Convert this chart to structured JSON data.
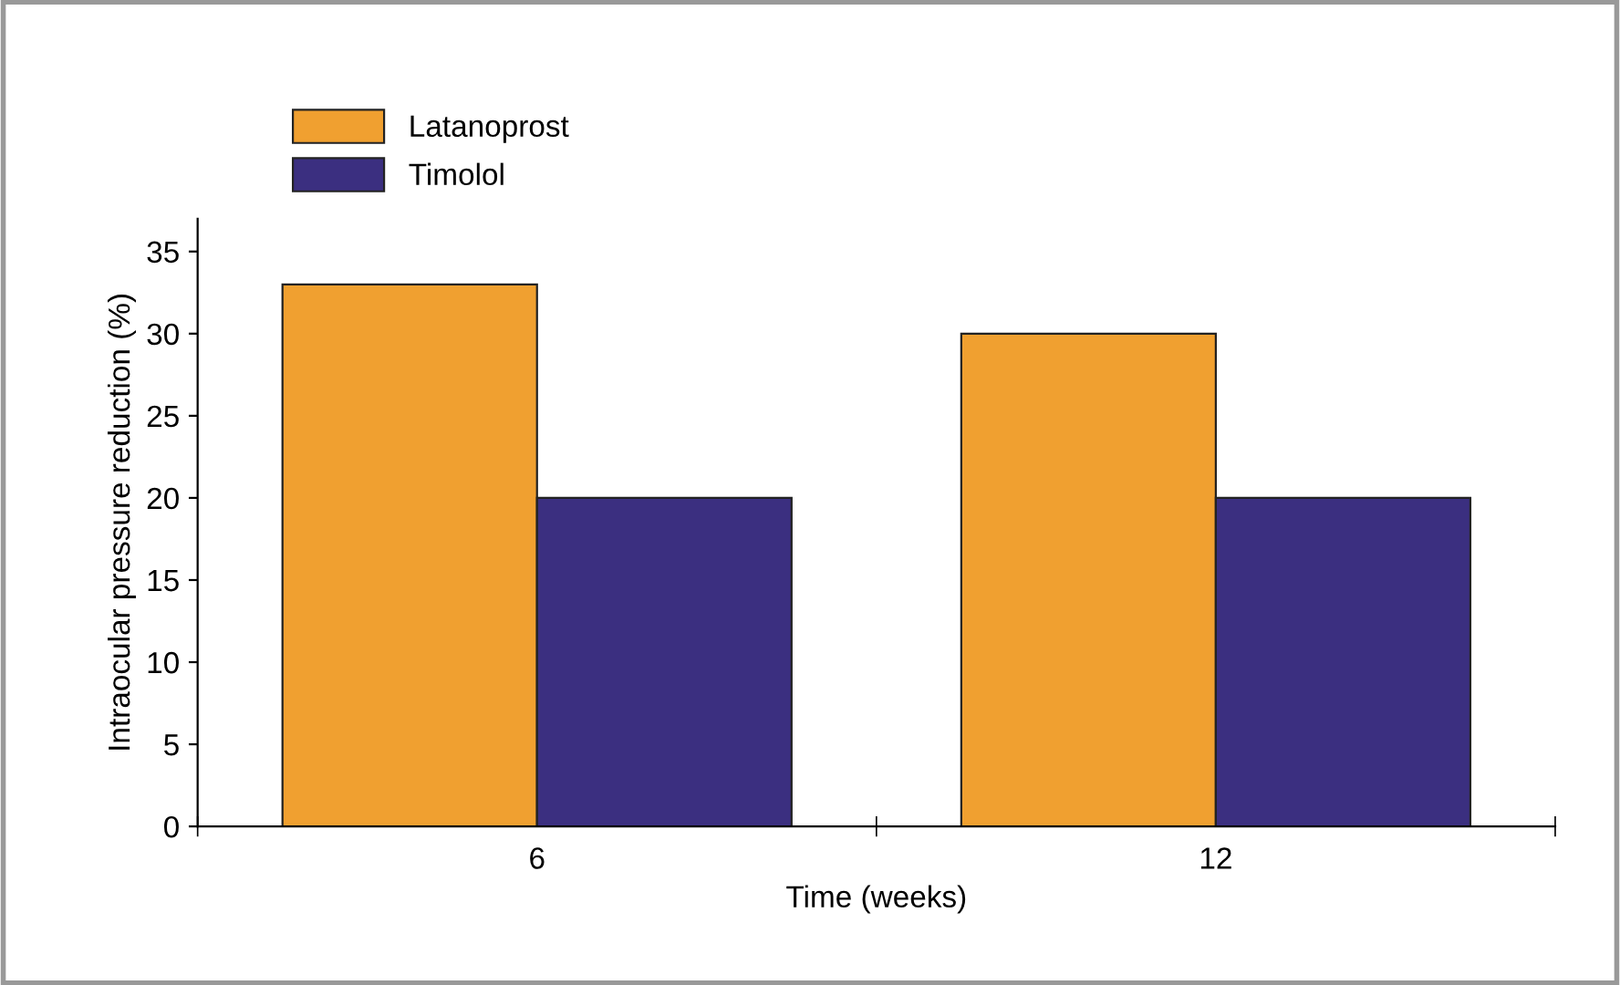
{
  "chart_data": {
    "type": "bar",
    "xlabel": "Time (weeks)",
    "ylabel": "Intraocular pressure reduction (%)",
    "categories": [
      "6",
      "12"
    ],
    "series": [
      {
        "name": "Latanoprost",
        "color": "#f0a030",
        "values": [
          33,
          30
        ]
      },
      {
        "name": "Timolol",
        "color": "#3b2f80",
        "values": [
          20,
          20
        ]
      }
    ],
    "ylim": [
      0,
      37
    ],
    "yticks": [
      0,
      5,
      10,
      15,
      20,
      25,
      30,
      35
    ],
    "grid": false,
    "legend": "top left"
  }
}
